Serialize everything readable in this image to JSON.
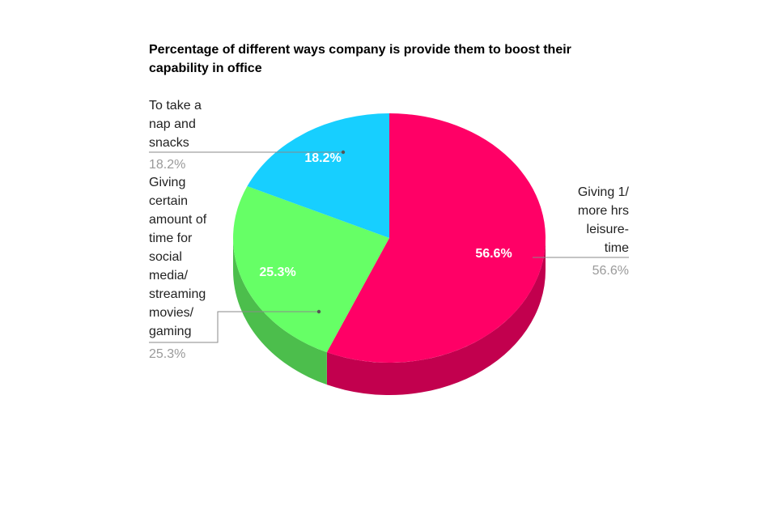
{
  "chart_data": {
    "type": "pie",
    "style": "3d",
    "title": "Percentage of different ways company is provide them to boost their capability in office",
    "slices": [
      {
        "label": "Giving 1/ more hrs leisure-time",
        "value": 56.6,
        "display": "56.6%",
        "color": "#ff0066",
        "side_color": "#c2004e"
      },
      {
        "label": "Giving certain amount of time for social media/ streaming movies/ gaming",
        "value": 25.3,
        "display": "25.3%",
        "color": "#66ff66",
        "side_color": "#4cbe4c"
      },
      {
        "label": "To take a nap and snacks",
        "value": 18.2,
        "display": "18.2%",
        "color": "#17cfff",
        "side_color": "#10a3c9"
      }
    ],
    "legend": "none",
    "labels": "callouts"
  }
}
